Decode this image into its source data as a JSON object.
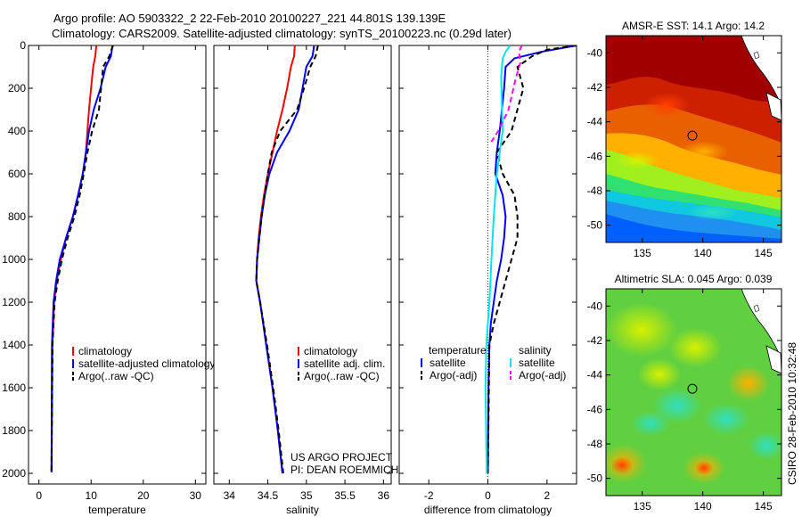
{
  "header": {
    "line1": "Argo profile: AO 5903322_2 22-Feb-2010 20100227_221 44.801S 139.139E",
    "line2": "Climatology: CARS2009. Satellite-adjusted climatology: synTS_20100223.nc (0.29d later)"
  },
  "side_label": "CSIRO 28-Feb-2010 10:32:48",
  "chart_data": [
    {
      "type": "line",
      "xlabel": "temperature",
      "xlim": [
        -2,
        32
      ],
      "ylim": [
        0,
        2050
      ],
      "y_reversed": true,
      "xticks": [
        0,
        10,
        20,
        30
      ],
      "yticks": [
        0,
        200,
        400,
        600,
        800,
        1000,
        1200,
        1400,
        1600,
        1800,
        2000
      ],
      "legend": [
        "climatology",
        "satellite-adjusted climatology",
        "Argo(..raw -QC)"
      ],
      "legend_placement": "lower-right",
      "series": [
        {
          "name": "climatology",
          "color": "#ff0000",
          "style": "solid",
          "x": [
            11.0,
            10.8,
            10.4,
            10.0,
            9.6,
            9.3,
            9.0,
            8.4,
            7.5,
            6.5,
            5.2,
            4.2,
            3.4,
            2.9,
            2.6,
            2.4
          ],
          "y": [
            0,
            50,
            100,
            200,
            300,
            400,
            500,
            600,
            700,
            800,
            900,
            1000,
            1100,
            1200,
            1400,
            1995
          ]
        },
        {
          "name": "satellite-adjusted climatology",
          "color": "#0000ff",
          "style": "solid",
          "x": [
            14.1,
            13.8,
            12.8,
            11.8,
            10.5,
            9.6,
            9.0,
            8.4,
            7.5,
            6.5,
            5.2,
            4.0,
            3.3,
            2.8,
            2.5,
            2.4
          ],
          "y": [
            0,
            50,
            100,
            200,
            300,
            400,
            500,
            600,
            700,
            800,
            900,
            1000,
            1100,
            1200,
            1400,
            1995
          ]
        },
        {
          "name": "Argo(..raw -QC)",
          "color": "#000000",
          "style": "dashed",
          "x": [
            14.2,
            13.5,
            12.3,
            11.9,
            11.5,
            10.2,
            9.3,
            8.6,
            7.8,
            6.8,
            5.5,
            4.4,
            3.6,
            3.0,
            2.6,
            2.4
          ],
          "y": [
            0,
            50,
            100,
            200,
            300,
            400,
            500,
            600,
            700,
            800,
            900,
            1000,
            1100,
            1200,
            1400,
            1995
          ]
        }
      ]
    },
    {
      "type": "line",
      "xlabel": "salinity",
      "xlim": [
        33.8,
        36.1
      ],
      "ylim": [
        0,
        2050
      ],
      "y_reversed": true,
      "xticks": [
        34,
        34.5,
        35,
        35.5,
        36
      ],
      "legend": [
        "climatology",
        "satellite adj. clim.",
        "Argo(..raw -QC)"
      ],
      "legend_placement": "lower-right",
      "annotations": [
        "US ARGO PROJECT",
        "PI: DEAN ROEMMICH"
      ],
      "series": [
        {
          "name": "climatology",
          "color": "#ff0000",
          "style": "solid",
          "x": [
            34.85,
            34.84,
            34.8,
            34.75,
            34.69,
            34.62,
            34.56,
            34.5,
            34.45,
            34.41,
            34.38,
            34.36,
            34.35,
            34.4,
            34.48,
            34.56,
            34.63,
            34.69
          ],
          "y": [
            0,
            50,
            100,
            200,
            300,
            400,
            500,
            600,
            700,
            800,
            900,
            1000,
            1100,
            1200,
            1400,
            1600,
            1800,
            2000
          ]
        },
        {
          "name": "satellite adj. clim.",
          "color": "#0000ff",
          "style": "solid",
          "x": [
            35.1,
            35.08,
            35.0,
            34.95,
            34.9,
            34.78,
            34.62,
            34.52,
            34.46,
            34.42,
            34.39,
            34.36,
            34.35,
            34.4,
            34.48,
            34.56,
            34.63,
            34.69
          ],
          "y": [
            0,
            50,
            100,
            200,
            300,
            400,
            500,
            600,
            700,
            800,
            900,
            1000,
            1100,
            1200,
            1400,
            1600,
            1800,
            2000
          ]
        },
        {
          "name": "Argo(..raw -QC)",
          "color": "#000000",
          "style": "dashed",
          "x": [
            35.15,
            35.12,
            35.05,
            34.97,
            34.88,
            34.66,
            34.55,
            34.5,
            34.46,
            34.42,
            34.39,
            34.36,
            34.35,
            34.4,
            34.49,
            34.57,
            34.64,
            34.7
          ],
          "y": [
            0,
            50,
            100,
            200,
            300,
            400,
            500,
            600,
            700,
            800,
            900,
            1000,
            1100,
            1200,
            1400,
            1600,
            1800,
            2000
          ]
        }
      ]
    },
    {
      "type": "line",
      "xlabel": "difference from climatology",
      "xlim": [
        -3,
        3.0
      ],
      "ylim": [
        0,
        2050
      ],
      "y_reversed": true,
      "xticks": [
        -2,
        0,
        2
      ],
      "zero_line": "dotted",
      "legend_left_title": "temperature",
      "legend_right_title": "salinity",
      "legend": [
        "satellite",
        "Argo(-adj)",
        "satellite",
        "Argo(-adj)"
      ],
      "legend_placement": "lower-center",
      "series": [
        {
          "name": "satellite",
          "group": "temperature",
          "color": "#0000ff",
          "style": "solid",
          "x": [
            3.0,
            1.8,
            0.9,
            0.6,
            0.55,
            0.4,
            0.3,
            0.25,
            0.5,
            0.6,
            0.55,
            0.45,
            0.3,
            0.2,
            0.1,
            0.05,
            0.02,
            0.0
          ],
          "y": [
            0,
            30,
            60,
            100,
            200,
            400,
            500,
            600,
            700,
            800,
            900,
            1000,
            1100,
            1200,
            1300,
            1400,
            1600,
            2000
          ]
        },
        {
          "name": "Argo(-adj)",
          "group": "temperature",
          "color": "#000000",
          "style": "dashed",
          "x": [
            3.0,
            2.0,
            1.5,
            1.0,
            1.2,
            0.8,
            0.3,
            0.5,
            0.9,
            1.0,
            1.0,
            0.8,
            0.6,
            0.4,
            0.2,
            0.05,
            0.0
          ],
          "y": [
            0,
            20,
            50,
            100,
            200,
            400,
            500,
            600,
            700,
            800,
            900,
            1000,
            1100,
            1200,
            1300,
            1400,
            2000
          ]
        },
        {
          "name": "satellite",
          "group": "salinity",
          "color": "#00e5ee",
          "style": "solid",
          "x": [
            0.75,
            0.6,
            0.5,
            0.45,
            0.5,
            0.4,
            0.3,
            0.2,
            0.12,
            0.05,
            -0.05,
            -0.08,
            -0.06,
            -0.04
          ],
          "y": [
            0,
            30,
            60,
            150,
            400,
            500,
            600,
            800,
            1000,
            1200,
            1400,
            1600,
            1800,
            2000
          ]
        },
        {
          "name": "Argo(-adj)",
          "group": "salinity",
          "color": "#ff00ff",
          "style": "dashed",
          "x": [
            1.15,
            1.05,
            1.1,
            0.95,
            0.7,
            0.35,
            0.12
          ],
          "y": [
            0,
            30,
            80,
            150,
            300,
            400,
            450
          ]
        }
      ]
    },
    {
      "type": "heatmap",
      "title": "AMSR-E SST: 14.1 Argo: 14.2",
      "xlim": [
        132,
        146.5
      ],
      "ylim": [
        -51,
        -39
      ],
      "xticks": [
        135,
        140,
        145
      ],
      "yticks": [
        -40,
        -42,
        -44,
        -46,
        -48,
        -50
      ],
      "marker": {
        "lon": 139.139,
        "lat": -44.801
      }
    },
    {
      "type": "heatmap",
      "title": "Altimetric SLA: 0.045 Argo: 0.039",
      "xlim": [
        132,
        146.5
      ],
      "ylim": [
        -51,
        -39
      ],
      "xticks": [
        135,
        140,
        145
      ],
      "yticks": [
        -40,
        -42,
        -44,
        -46,
        -48,
        -50
      ],
      "marker": {
        "lon": 139.139,
        "lat": -44.801
      }
    }
  ]
}
